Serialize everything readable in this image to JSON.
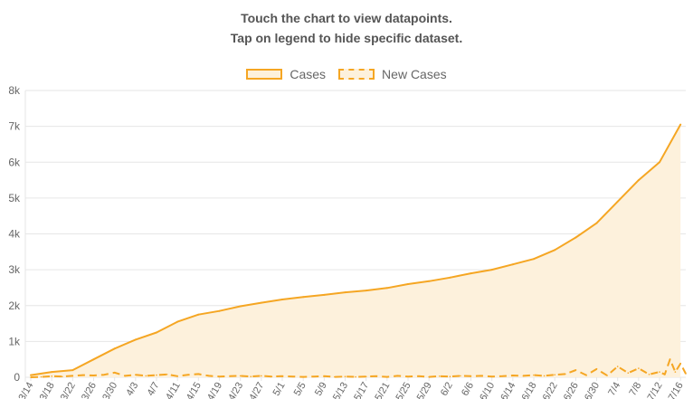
{
  "hints": {
    "line1": "Touch the chart to view datapoints.",
    "line2": "Tap on legend to hide specific dataset."
  },
  "colors": {
    "line": "#f5a623",
    "fill": "#fdf1dc",
    "grid": "#e6e6e6",
    "tick_text": "#666666"
  },
  "chart_data": {
    "type": "area",
    "grid": true,
    "legend_position": "top-center",
    "ylim": [
      0,
      8000
    ],
    "y_ticks": [
      "0",
      "1k",
      "2k",
      "3k",
      "4k",
      "5k",
      "6k",
      "7k",
      "8k"
    ],
    "x_tick_labels": [
      "3/14",
      "3/18",
      "3/22",
      "3/26",
      "3/30",
      "4/3",
      "4/7",
      "4/11",
      "4/15",
      "4/19",
      "4/23",
      "4/27",
      "5/1",
      "5/5",
      "5/9",
      "5/13",
      "5/17",
      "5/21",
      "5/25",
      "5/29",
      "6/2",
      "6/6",
      "6/10",
      "6/14",
      "6/18",
      "6/22",
      "6/26",
      "6/30",
      "7/4",
      "7/8",
      "7/12",
      "7/16"
    ],
    "series": [
      {
        "name": "Cases",
        "style": "solid-filled",
        "points": [
          [
            "3/14",
            60
          ],
          [
            "3/18",
            150
          ],
          [
            "3/22",
            200
          ],
          [
            "3/26",
            500
          ],
          [
            "3/30",
            800
          ],
          [
            "4/3",
            1050
          ],
          [
            "4/7",
            1250
          ],
          [
            "4/11",
            1550
          ],
          [
            "4/15",
            1750
          ],
          [
            "4/19",
            1850
          ],
          [
            "4/23",
            1980
          ],
          [
            "4/27",
            2080
          ],
          [
            "5/1",
            2170
          ],
          [
            "5/5",
            2240
          ],
          [
            "5/9",
            2300
          ],
          [
            "5/13",
            2370
          ],
          [
            "5/17",
            2420
          ],
          [
            "5/21",
            2490
          ],
          [
            "5/25",
            2600
          ],
          [
            "5/29",
            2680
          ],
          [
            "6/2",
            2780
          ],
          [
            "6/6",
            2900
          ],
          [
            "6/10",
            3000
          ],
          [
            "6/14",
            3150
          ],
          [
            "6/18",
            3300
          ],
          [
            "6/22",
            3550
          ],
          [
            "6/26",
            3900
          ],
          [
            "6/30",
            4300
          ],
          [
            "7/4",
            4900
          ],
          [
            "7/8",
            5500
          ],
          [
            "7/12",
            6000
          ],
          [
            "7/16",
            7050
          ]
        ]
      },
      {
        "name": "New Cases",
        "style": "dashed",
        "points": [
          [
            "3/14",
            0
          ],
          [
            "3/16",
            10
          ],
          [
            "3/18",
            30
          ],
          [
            "3/20",
            20
          ],
          [
            "3/22",
            40
          ],
          [
            "3/24",
            60
          ],
          [
            "3/26",
            50
          ],
          [
            "3/28",
            70
          ],
          [
            "3/30",
            130
          ],
          [
            "4/1",
            40
          ],
          [
            "4/3",
            70
          ],
          [
            "4/5",
            40
          ],
          [
            "4/7",
            60
          ],
          [
            "4/9",
            80
          ],
          [
            "4/11",
            30
          ],
          [
            "4/13",
            70
          ],
          [
            "4/15",
            90
          ],
          [
            "4/17",
            40
          ],
          [
            "4/19",
            20
          ],
          [
            "4/21",
            30
          ],
          [
            "4/23",
            40
          ],
          [
            "4/25",
            20
          ],
          [
            "4/27",
            40
          ],
          [
            "4/29",
            20
          ],
          [
            "5/1",
            30
          ],
          [
            "5/3",
            20
          ],
          [
            "5/5",
            10
          ],
          [
            "5/7",
            20
          ],
          [
            "5/9",
            30
          ],
          [
            "5/11",
            10
          ],
          [
            "5/13",
            20
          ],
          [
            "5/15",
            10
          ],
          [
            "5/17",
            20
          ],
          [
            "5/19",
            30
          ],
          [
            "5/21",
            10
          ],
          [
            "5/23",
            40
          ],
          [
            "5/25",
            20
          ],
          [
            "5/27",
            30
          ],
          [
            "5/29",
            10
          ],
          [
            "5/31",
            30
          ],
          [
            "6/2",
            20
          ],
          [
            "6/4",
            40
          ],
          [
            "6/6",
            30
          ],
          [
            "6/8",
            40
          ],
          [
            "6/10",
            20
          ],
          [
            "6/12",
            30
          ],
          [
            "6/14",
            50
          ],
          [
            "6/16",
            40
          ],
          [
            "6/18",
            60
          ],
          [
            "6/20",
            40
          ],
          [
            "6/22",
            70
          ],
          [
            "6/24",
            90
          ],
          [
            "6/26",
            200
          ],
          [
            "6/28",
            60
          ],
          [
            "6/30",
            230
          ],
          [
            "7/2",
            50
          ],
          [
            "7/4",
            300
          ],
          [
            "7/6",
            120
          ],
          [
            "7/8",
            250
          ],
          [
            "7/10",
            80
          ],
          [
            "7/12",
            150
          ],
          [
            "7/13",
            80
          ],
          [
            "7/14",
            500
          ],
          [
            "7/15",
            150
          ],
          [
            "7/16",
            380
          ],
          [
            "7/17",
            100
          ]
        ]
      }
    ]
  }
}
